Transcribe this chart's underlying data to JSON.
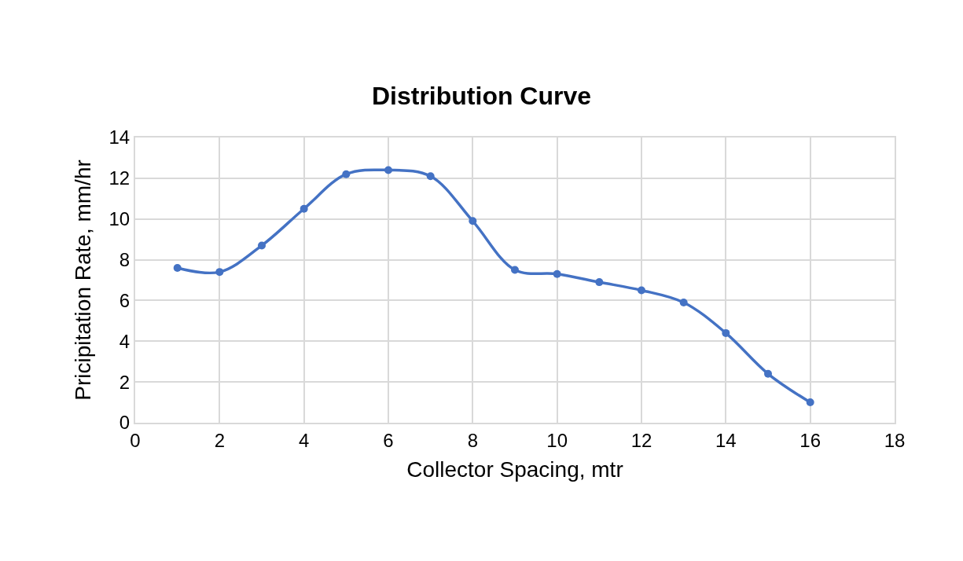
{
  "chart_data": {
    "type": "line",
    "title": "Distribution Curve",
    "xlabel": "Collector Spacing, mtr",
    "ylabel": "Pricipitation Rate, mm/hr",
    "x": [
      1,
      2,
      3,
      4,
      5,
      6,
      7,
      8,
      9,
      10,
      11,
      12,
      13,
      14,
      15,
      16
    ],
    "series": [
      {
        "color": "#4472c4",
        "values": [
          7.6,
          7.4,
          8.7,
          10.5,
          12.2,
          12.4,
          12.1,
          9.9,
          7.5,
          7.3,
          6.9,
          6.5,
          5.9,
          4.4,
          2.4,
          1.0
        ]
      }
    ],
    "xlim": [
      0,
      18
    ],
    "xticks": [
      0,
      2,
      4,
      6,
      8,
      10,
      12,
      14,
      16,
      18
    ],
    "ylim": [
      0,
      14
    ],
    "yticks": [
      0,
      2,
      4,
      6,
      8,
      10,
      12,
      14
    ],
    "grid": true,
    "marker": "circle",
    "line_style": "solid",
    "legend": false
  }
}
